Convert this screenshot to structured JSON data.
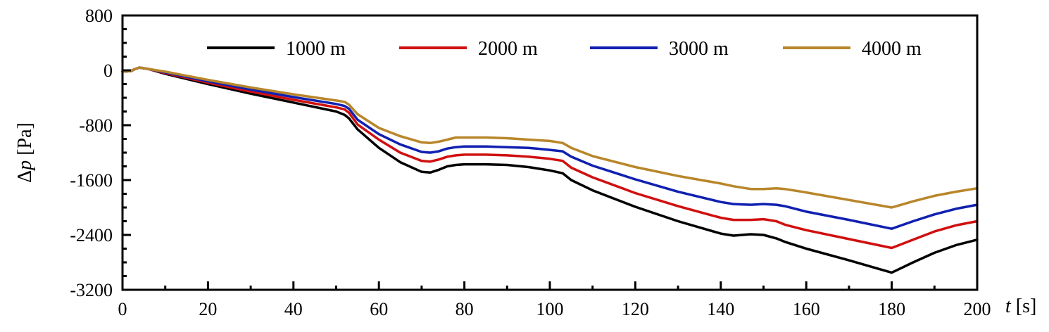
{
  "chart_data": {
    "type": "line",
    "title": "",
    "xlabel_var": "t",
    "xlabel_unit": "[s]",
    "ylabel_var": "p",
    "ylabel_prefix": "Δ",
    "ylabel_unit": "[Pa]",
    "xlim": [
      0,
      200
    ],
    "ylim": [
      -3200,
      800
    ],
    "xticks": [
      0,
      20,
      40,
      60,
      80,
      100,
      120,
      140,
      160,
      180,
      200
    ],
    "yticks": [
      -3200,
      -2400,
      -1600,
      -800,
      0,
      800
    ],
    "xtick_labels": [
      "0",
      "20",
      "40",
      "60",
      "80",
      "100",
      "120",
      "140",
      "160",
      "180",
      "200"
    ],
    "ytick_labels": [
      "-3200",
      "-2400",
      "-1600",
      "-800",
      "0",
      "800"
    ],
    "grid": false,
    "legend_position": "top, horizontal, inside plot",
    "series": [
      {
        "name": "1000 m",
        "color": "#000000",
        "x": [
          0,
          2,
          3,
          4,
          6,
          10,
          20,
          30,
          40,
          50,
          52,
          53,
          55,
          60,
          65,
          70,
          72,
          74,
          76,
          78,
          80,
          85,
          90,
          95,
          100,
          103,
          105,
          110,
          120,
          130,
          140,
          143,
          147,
          150,
          153,
          155,
          160,
          170,
          180,
          185,
          190,
          195,
          200
        ],
        "y": [
          -20,
          -10,
          20,
          40,
          20,
          -50,
          -200,
          -340,
          -470,
          -600,
          -650,
          -700,
          -860,
          -1130,
          -1340,
          -1480,
          -1490,
          -1450,
          -1400,
          -1380,
          -1370,
          -1370,
          -1380,
          -1410,
          -1460,
          -1500,
          -1600,
          -1750,
          -1990,
          -2200,
          -2380,
          -2410,
          -2390,
          -2400,
          -2450,
          -2500,
          -2600,
          -2770,
          -2950,
          -2800,
          -2660,
          -2550,
          -2470
        ]
      },
      {
        "name": "2000 m",
        "color": "#d01010",
        "x": [
          0,
          2,
          3,
          4,
          6,
          10,
          20,
          30,
          40,
          50,
          52,
          53,
          55,
          60,
          65,
          70,
          72,
          74,
          76,
          78,
          80,
          85,
          90,
          95,
          100,
          103,
          105,
          110,
          120,
          130,
          140,
          143,
          147,
          150,
          153,
          155,
          160,
          170,
          180,
          185,
          190,
          195,
          200
        ],
        "y": [
          -20,
          -10,
          20,
          40,
          20,
          -40,
          -180,
          -310,
          -430,
          -540,
          -570,
          -620,
          -790,
          -1010,
          -1200,
          -1320,
          -1330,
          -1300,
          -1260,
          -1240,
          -1230,
          -1230,
          -1240,
          -1260,
          -1290,
          -1320,
          -1420,
          -1560,
          -1790,
          -1980,
          -2150,
          -2180,
          -2180,
          -2170,
          -2200,
          -2250,
          -2330,
          -2460,
          -2590,
          -2470,
          -2350,
          -2260,
          -2200
        ]
      },
      {
        "name": "3000 m",
        "color": "#1020b0",
        "x": [
          0,
          2,
          3,
          4,
          6,
          10,
          20,
          30,
          40,
          50,
          52,
          53,
          55,
          60,
          65,
          70,
          72,
          74,
          76,
          78,
          80,
          85,
          90,
          95,
          100,
          103,
          105,
          110,
          120,
          130,
          140,
          143,
          147,
          150,
          153,
          155,
          160,
          170,
          180,
          185,
          190,
          195,
          200
        ],
        "y": [
          -20,
          -10,
          20,
          40,
          20,
          -30,
          -160,
          -280,
          -390,
          -490,
          -520,
          -560,
          -720,
          -930,
          -1080,
          -1190,
          -1200,
          -1180,
          -1140,
          -1120,
          -1110,
          -1110,
          -1120,
          -1130,
          -1160,
          -1180,
          -1260,
          -1390,
          -1590,
          -1770,
          -1920,
          -1950,
          -1960,
          -1950,
          -1960,
          -1980,
          -2060,
          -2180,
          -2310,
          -2200,
          -2100,
          -2020,
          -1960
        ]
      },
      {
        "name": "4000 m",
        "color": "#b8862a",
        "x": [
          0,
          2,
          3,
          4,
          6,
          10,
          20,
          30,
          40,
          50,
          52,
          53,
          55,
          60,
          65,
          70,
          72,
          74,
          76,
          78,
          80,
          85,
          90,
          95,
          100,
          103,
          105,
          110,
          120,
          130,
          140,
          143,
          147,
          150,
          153,
          155,
          160,
          170,
          180,
          185,
          190,
          195,
          200
        ],
        "y": [
          -20,
          -10,
          20,
          40,
          20,
          -20,
          -140,
          -250,
          -350,
          -440,
          -460,
          -500,
          -640,
          -840,
          -960,
          -1050,
          -1060,
          -1040,
          -1010,
          -980,
          -980,
          -980,
          -990,
          -1010,
          -1030,
          -1060,
          -1130,
          -1250,
          -1410,
          -1540,
          -1650,
          -1690,
          -1730,
          -1730,
          -1720,
          -1730,
          -1780,
          -1890,
          -2000,
          -1910,
          -1830,
          -1770,
          -1720
        ]
      }
    ]
  }
}
